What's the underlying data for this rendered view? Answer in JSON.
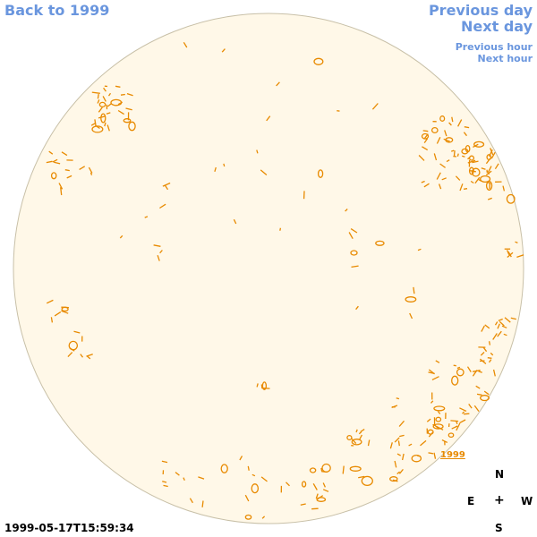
{
  "nav": {
    "back": "Back to 1999",
    "previous_day": "Previous day",
    "next_day": "Next day",
    "previous_hour": "Previous hour",
    "next_hour": "Next hour"
  },
  "compass": {
    "north": "N",
    "east": "E",
    "center": "+",
    "west": "W",
    "south": "S"
  },
  "timestamp": "1999-05-17T15:59:34",
  "year_link": "1999",
  "colors": {
    "disk_fill": "#fff8e8",
    "disk_edge": "#c8c0a8",
    "feature": "#e88a00",
    "nav": "#6a96de"
  },
  "icons": {
    "disk": "solar-disk-image"
  }
}
